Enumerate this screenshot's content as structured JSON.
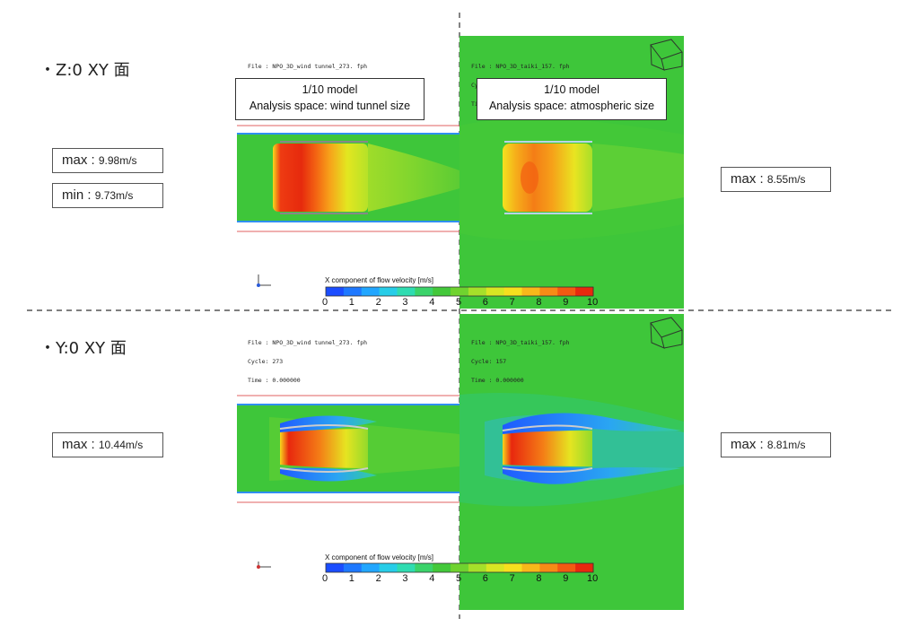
{
  "sections": [
    {
      "id": "top",
      "label": "・Z:0 XY 面",
      "left_values": [
        {
          "name": "max",
          "value": "9.98m/s"
        },
        {
          "name": "min",
          "value": "9.73m/s"
        }
      ],
      "right_values": [
        {
          "name": "max",
          "value": "8.55m/s"
        }
      ]
    },
    {
      "id": "bottom",
      "label": "・Y:0 XY 面",
      "left_values": [
        {
          "name": "max",
          "value": "10.44m/s"
        }
      ],
      "right_values": [
        {
          "name": "max",
          "value": "8.81m/s"
        }
      ]
    }
  ],
  "panels": {
    "wind_tunnel": {
      "file_line": "File : NPO_3D_wind tunnel_273. fph",
      "cycle_line": "Cycle: 273",
      "time_line": "Time : 0.000000",
      "model_title": "1/10 model",
      "model_subtitle": "Analysis space: wind tunnel size"
    },
    "atmospheric": {
      "file_line": "File : NPO_3D_taiki_157. fph",
      "cycle_line": "Cycle: 157",
      "time_line": "Time : 0.000000",
      "model_title": "1/10 model",
      "model_subtitle": "Analysis space: atmospheric size"
    }
  },
  "colorbar": {
    "title": "X component of flow velocity [m/s]",
    "ticks": [
      "0",
      "1",
      "2",
      "3",
      "4",
      "5",
      "6",
      "7",
      "8",
      "9",
      "10"
    ],
    "colors": [
      "#1b4dff",
      "#1e78ff",
      "#21a6ff",
      "#27cde8",
      "#2fdcb1",
      "#3bd36a",
      "#43c83a",
      "#6fd32f",
      "#a6e02a",
      "#d8e623",
      "#f6df1e",
      "#f8b81a",
      "#f78b16",
      "#f35a12",
      "#e8280e"
    ]
  },
  "colors": {
    "field_green": "#3ec63a",
    "divider": "#333333"
  }
}
